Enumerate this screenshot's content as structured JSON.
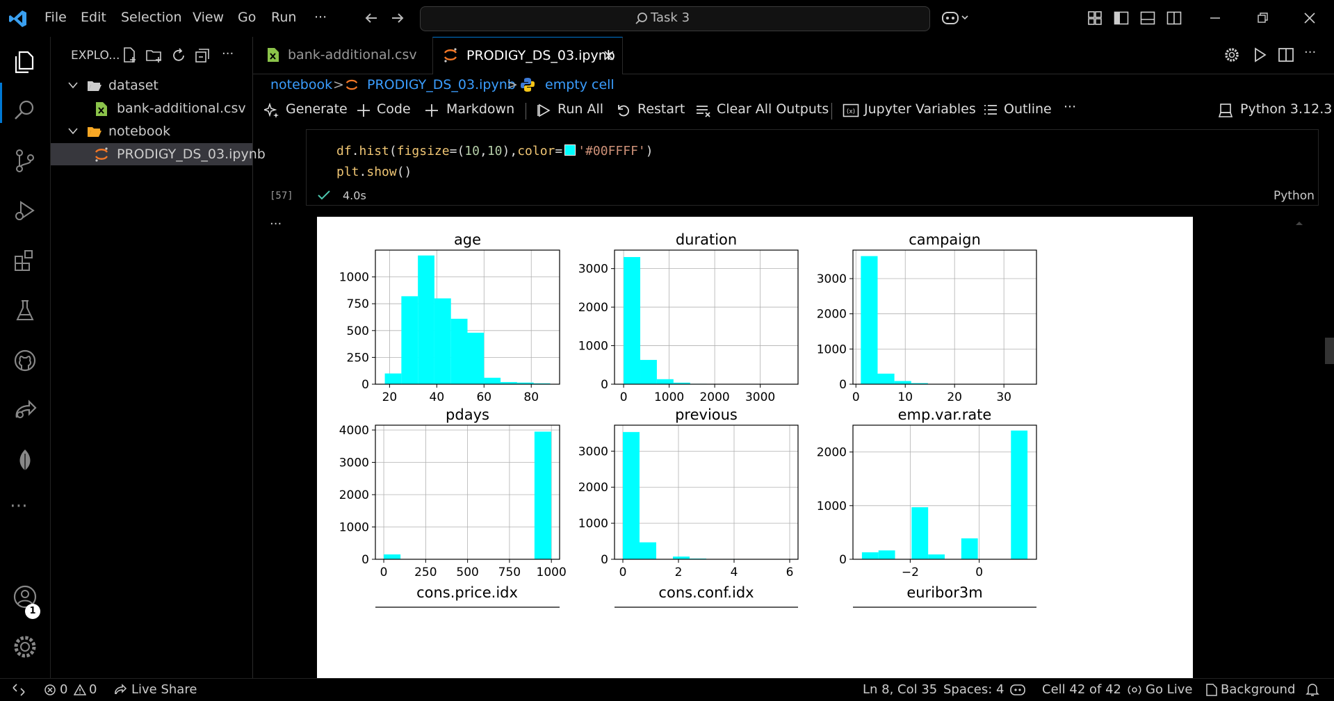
{
  "titlebar": {
    "menu": [
      "File",
      "Edit",
      "Selection",
      "View",
      "Go",
      "Run"
    ],
    "more": "···",
    "search_text": "Task 3"
  },
  "sidebar": {
    "title": "EXPLO...",
    "more": "···",
    "tree": [
      {
        "label": "dataset",
        "type": "folder"
      },
      {
        "label": "bank-additional.csv",
        "type": "csv"
      },
      {
        "label": "notebook",
        "type": "folder"
      },
      {
        "label": "PRODIGY_DS_03.ipynb",
        "type": "notebook"
      }
    ]
  },
  "tabs": [
    {
      "label": "bank-additional.csv",
      "active": false
    },
    {
      "label": "PRODIGY_DS_03.ipynb",
      "active": true
    }
  ],
  "breadcrumb": {
    "items": [
      "notebook",
      "PRODIGY_DS_03.ipynb",
      "empty cell"
    ]
  },
  "toolbar": {
    "generate": "Generate",
    "code": "Code",
    "markdown": "Markdown",
    "run_all": "Run All",
    "restart": "Restart",
    "clear_outputs": "Clear All Outputs",
    "variables": "Jupyter Variables",
    "outline": "Outline",
    "more": "···",
    "kernel": "Python 3.12.3"
  },
  "cell": {
    "line1": {
      "a": "df",
      "b": ".",
      "c": "hist",
      "d": "(",
      "e": "figsize",
      "f": "=",
      "g": "(",
      "h": "10",
      "i": ",",
      "j": "10",
      "k": ")",
      "l": ",",
      "m": "color",
      "n": "=",
      "o": "'#00FFFF'",
      "p": ")"
    },
    "line2": {
      "a": "plt",
      "b": ".",
      "c": "show",
      "d": "()"
    },
    "exec_count": "[57]",
    "duration": "4.0s",
    "language": "Python",
    "output_more": "···",
    "swatch_color": "#00FFFF"
  },
  "chart_data": [
    {
      "type": "bar",
      "title": "age",
      "xticks": [
        20,
        40,
        60,
        80
      ],
      "yticks": [
        0,
        250,
        500,
        750,
        1000
      ],
      "xlim": [
        14,
        92
      ],
      "ylim": [
        0,
        1250
      ],
      "bins": [
        [
          18,
          25,
          100
        ],
        [
          25,
          32,
          820
        ],
        [
          32,
          39,
          1200
        ],
        [
          39,
          46,
          800
        ],
        [
          46,
          53,
          610
        ],
        [
          53,
          60,
          480
        ],
        [
          60,
          67,
          60
        ],
        [
          67,
          74,
          20
        ],
        [
          74,
          81,
          15
        ],
        [
          81,
          88,
          8
        ]
      ]
    },
    {
      "type": "bar",
      "title": "duration",
      "xticks": [
        0,
        1000,
        2000,
        3000
      ],
      "yticks": [
        0,
        1000,
        2000,
        3000
      ],
      "xlim": [
        -200,
        3830
      ],
      "ylim": [
        0,
        3480
      ],
      "bins": [
        [
          0,
          365,
          3300
        ],
        [
          365,
          730,
          630
        ],
        [
          730,
          1095,
          130
        ],
        [
          1095,
          1460,
          40
        ],
        [
          1460,
          1825,
          10
        ],
        [
          1825,
          2190,
          4
        ]
      ]
    },
    {
      "type": "bar",
      "title": "campaign",
      "xticks": [
        0,
        10,
        20,
        30
      ],
      "yticks": [
        0,
        1000,
        2000,
        3000
      ],
      "xlim": [
        -0.6,
        36.6
      ],
      "ylim": [
        0,
        3810
      ],
      "bins": [
        [
          1,
          4.4,
          3640
        ],
        [
          4.4,
          7.8,
          300
        ],
        [
          7.8,
          11.2,
          90
        ],
        [
          11.2,
          14.6,
          30
        ],
        [
          14.6,
          18,
          10
        ],
        [
          18,
          21.4,
          5
        ],
        [
          21.4,
          24.8,
          3
        ]
      ]
    },
    {
      "type": "bar",
      "title": "pdays",
      "xticks": [
        0,
        250,
        500,
        750,
        1000
      ],
      "yticks": [
        0,
        1000,
        2000,
        3000,
        4000
      ],
      "xlim": [
        -50,
        1049
      ],
      "ylim": [
        0,
        4150
      ],
      "bins": [
        [
          0,
          99.9,
          150
        ],
        [
          899.1,
          999,
          3950
        ]
      ]
    },
    {
      "type": "bar",
      "title": "previous",
      "xticks": [
        0,
        2,
        4,
        6
      ],
      "yticks": [
        0,
        1000,
        2000,
        3000
      ],
      "xlim": [
        -0.3,
        6.3
      ],
      "ylim": [
        0,
        3720
      ],
      "bins": [
        [
          0,
          0.6,
          3530
        ],
        [
          0.6,
          1.2,
          470
        ],
        [
          1.8,
          2.4,
          75
        ],
        [
          2.4,
          3.0,
          20
        ],
        [
          3.6,
          4.2,
          10
        ],
        [
          4.2,
          4.8,
          5
        ]
      ]
    },
    {
      "type": "bar",
      "title": "emp.var.rate",
      "xticks": [
        -2,
        0
      ],
      "yticks": [
        0,
        1000,
        2000
      ],
      "xlim": [
        -3.66,
        1.66
      ],
      "ylim": [
        0,
        2500
      ],
      "bins": [
        [
          -3.4,
          -2.92,
          130
        ],
        [
          -2.92,
          -2.44,
          165
        ],
        [
          -2.44,
          -1.96,
          0
        ],
        [
          -1.96,
          -1.48,
          970
        ],
        [
          -1.48,
          -1.0,
          90
        ],
        [
          -1.0,
          -0.52,
          0
        ],
        [
          -0.52,
          -0.04,
          390
        ],
        [
          -0.04,
          0.44,
          0
        ],
        [
          0.44,
          0.92,
          0
        ],
        [
          0.92,
          1.4,
          2400
        ]
      ]
    }
  ],
  "next_titles": [
    "cons.price.idx",
    "cons.conf.idx",
    "euribor3m"
  ],
  "statusbar": {
    "errors": "0",
    "warnings": "0",
    "live_share": "Live Share",
    "position": "Ln 8, Col 35",
    "spaces": "Spaces: 4",
    "cell": "Cell 42 of 42",
    "go_live": "Go Live",
    "background": "Background"
  },
  "account_badge": "1",
  "colors": {
    "bar": "#00FFFF",
    "accent": "#0078d4",
    "string": "#ce9178",
    "keyword": "#f0c674"
  }
}
